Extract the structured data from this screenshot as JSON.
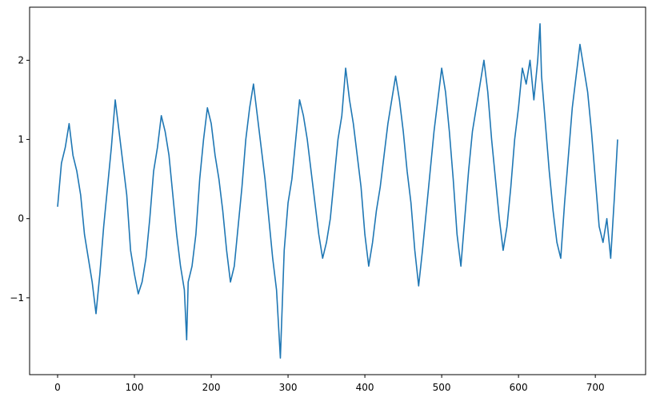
{
  "chart_data": {
    "type": "line",
    "x": [
      0,
      5,
      10,
      15,
      20,
      25,
      30,
      35,
      40,
      45,
      50,
      55,
      60,
      65,
      70,
      75,
      80,
      85,
      90,
      95,
      100,
      105,
      110,
      115,
      120,
      125,
      130,
      135,
      140,
      145,
      150,
      155,
      160,
      165,
      168,
      170,
      175,
      180,
      185,
      190,
      195,
      200,
      205,
      210,
      215,
      220,
      225,
      230,
      235,
      240,
      245,
      250,
      255,
      260,
      265,
      270,
      275,
      280,
      285,
      290,
      295,
      300,
      305,
      310,
      315,
      320,
      325,
      330,
      335,
      340,
      345,
      350,
      355,
      360,
      365,
      370,
      375,
      380,
      385,
      390,
      395,
      400,
      405,
      410,
      415,
      420,
      425,
      430,
      435,
      440,
      445,
      450,
      455,
      460,
      465,
      470,
      475,
      480,
      485,
      490,
      495,
      500,
      505,
      510,
      515,
      520,
      525,
      530,
      535,
      540,
      545,
      550,
      555,
      560,
      565,
      570,
      575,
      580,
      585,
      590,
      595,
      600,
      605,
      610,
      615,
      620,
      625,
      628,
      630,
      635,
      640,
      645,
      650,
      655,
      660,
      665,
      670,
      675,
      680,
      685,
      690,
      695,
      700,
      705,
      710,
      715,
      720,
      725,
      729
    ],
    "series": [
      {
        "color": "#1f77b4",
        "values": [
          0.15,
          0.7,
          0.9,
          1.2,
          0.8,
          0.6,
          0.3,
          -0.2,
          -0.5,
          -0.8,
          -1.2,
          -0.7,
          -0.1,
          0.4,
          0.9,
          1.5,
          1.1,
          0.7,
          0.3,
          -0.4,
          -0.7,
          -0.95,
          -0.8,
          -0.5,
          0.0,
          0.6,
          0.9,
          1.3,
          1.1,
          0.8,
          0.3,
          -0.2,
          -0.6,
          -0.9,
          -1.53,
          -0.8,
          -0.6,
          -0.2,
          0.5,
          1.0,
          1.4,
          1.2,
          0.8,
          0.5,
          0.1,
          -0.4,
          -0.8,
          -0.6,
          -0.1,
          0.4,
          1.0,
          1.4,
          1.7,
          1.3,
          0.9,
          0.5,
          0.0,
          -0.5,
          -0.9,
          -1.76,
          -0.4,
          0.2,
          0.5,
          1.0,
          1.5,
          1.3,
          1.0,
          0.6,
          0.2,
          -0.2,
          -0.5,
          -0.3,
          0.0,
          0.5,
          1.0,
          1.3,
          1.9,
          1.5,
          1.2,
          0.8,
          0.4,
          -0.2,
          -0.6,
          -0.3,
          0.1,
          0.4,
          0.8,
          1.2,
          1.5,
          1.8,
          1.5,
          1.1,
          0.6,
          0.2,
          -0.4,
          -0.85,
          -0.4,
          0.1,
          0.6,
          1.1,
          1.5,
          1.9,
          1.6,
          1.1,
          0.5,
          -0.2,
          -0.6,
          0.0,
          0.6,
          1.1,
          1.4,
          1.7,
          2.0,
          1.6,
          1.0,
          0.5,
          0.0,
          -0.4,
          -0.1,
          0.4,
          1.0,
          1.4,
          1.9,
          1.7,
          2.0,
          1.5,
          2.0,
          2.46,
          1.8,
          1.2,
          0.6,
          0.1,
          -0.3,
          -0.5,
          0.2,
          0.8,
          1.4,
          1.8,
          2.2,
          1.9,
          1.6,
          1.1,
          0.5,
          -0.1,
          -0.3,
          0.0,
          -0.5,
          0.3,
          1.0
        ]
      }
    ],
    "xlim": [
      -36.45,
      765.45
    ],
    "xticks": [
      0,
      100,
      200,
      300,
      400,
      500,
      600,
      700
    ],
    "ylim": [
      -1.97,
      2.67
    ],
    "yticks": [
      {
        "value": -1,
        "label": "−1"
      },
      0,
      1,
      2
    ]
  }
}
